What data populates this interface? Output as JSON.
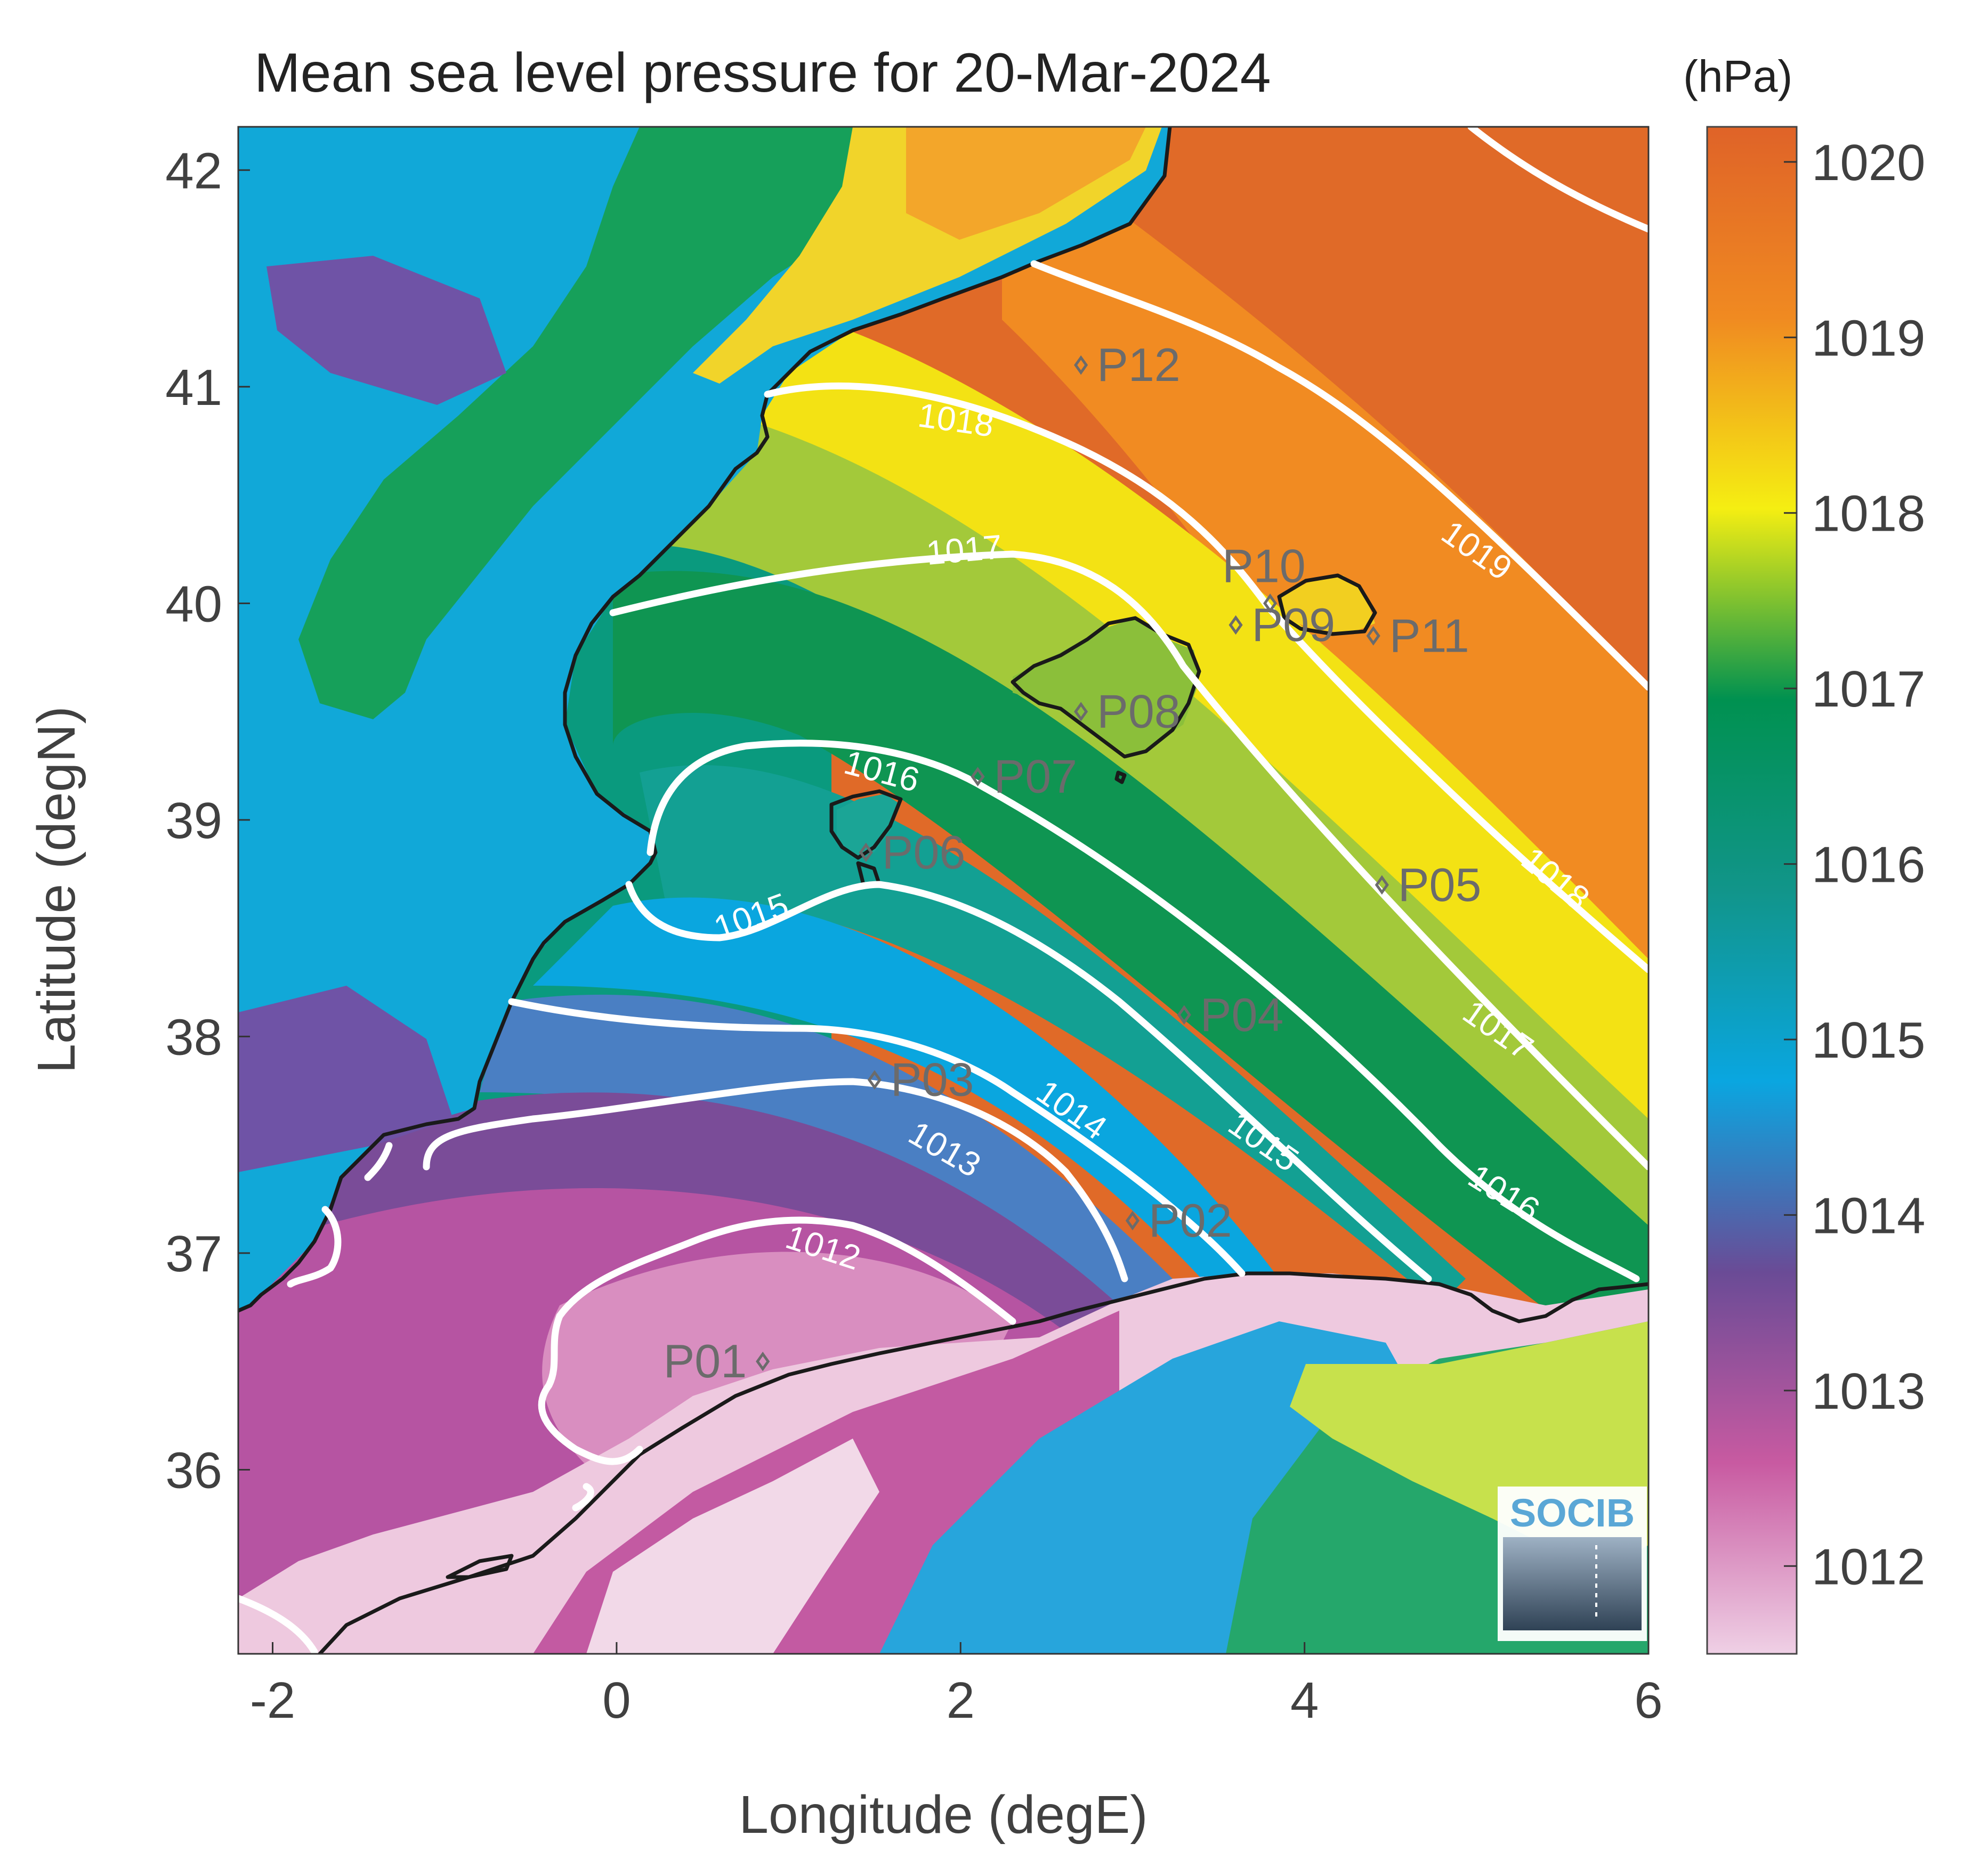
{
  "chart_data": {
    "type": "heatmap",
    "title": "Mean sea level pressure for 20-Mar-2024",
    "xlabel": "Longitude (degE)",
    "ylabel": "Latitude (degN)",
    "xlim": [
      -2.2,
      6.0
    ],
    "ylim": [
      35.15,
      42.2
    ],
    "x_ticks": [
      "-2",
      "0",
      "2",
      "4",
      "6"
    ],
    "y_ticks": [
      "36",
      "37",
      "38",
      "39",
      "40",
      "41",
      "42"
    ],
    "colorbar": {
      "unit": "(hPa)",
      "range": [
        1011.5,
        1020.2
      ],
      "ticks": [
        "1012",
        "1013",
        "1014",
        "1015",
        "1016",
        "1017",
        "1018",
        "1019",
        "1020"
      ],
      "colors": [
        "#efd0e5",
        "#c85aa1",
        "#6a4b96",
        "#0aa6e0",
        "#11958a",
        "#009150",
        "#f5ee12",
        "#f08a21",
        "#df6328"
      ]
    },
    "isobars": [
      {
        "label": "1012",
        "value": 1012
      },
      {
        "label": "1013",
        "value": 1013
      },
      {
        "label": "1014",
        "value": 1014
      },
      {
        "label": "1015",
        "value": 1015
      },
      {
        "label": "1016",
        "value": 1016
      },
      {
        "label": "1017",
        "value": 1017
      },
      {
        "label": "1018",
        "value": 1018
      },
      {
        "label": "1019",
        "value": 1019
      }
    ],
    "points": [
      {
        "label": "P01",
        "lon": 0.85,
        "lat": 36.5
      },
      {
        "label": "P02",
        "lon": 3.0,
        "lat": 37.15
      },
      {
        "label": "P03",
        "lon": 1.5,
        "lat": 37.8
      },
      {
        "label": "P04",
        "lon": 3.3,
        "lat": 38.1
      },
      {
        "label": "P05",
        "lon": 4.45,
        "lat": 38.7
      },
      {
        "label": "P06",
        "lon": 1.45,
        "lat": 38.85
      },
      {
        "label": "P07",
        "lon": 2.1,
        "lat": 39.2
      },
      {
        "label": "P08",
        "lon": 2.7,
        "lat": 39.5
      },
      {
        "label": "P09",
        "lon": 3.6,
        "lat": 39.9
      },
      {
        "label": "P10",
        "lon": 3.8,
        "lat": 40.0
      },
      {
        "label": "P11",
        "lon": 4.4,
        "lat": 39.85
      },
      {
        "label": "P12",
        "lon": 2.7,
        "lat": 41.1
      }
    ]
  },
  "logo": {
    "text": "SOCIB"
  }
}
